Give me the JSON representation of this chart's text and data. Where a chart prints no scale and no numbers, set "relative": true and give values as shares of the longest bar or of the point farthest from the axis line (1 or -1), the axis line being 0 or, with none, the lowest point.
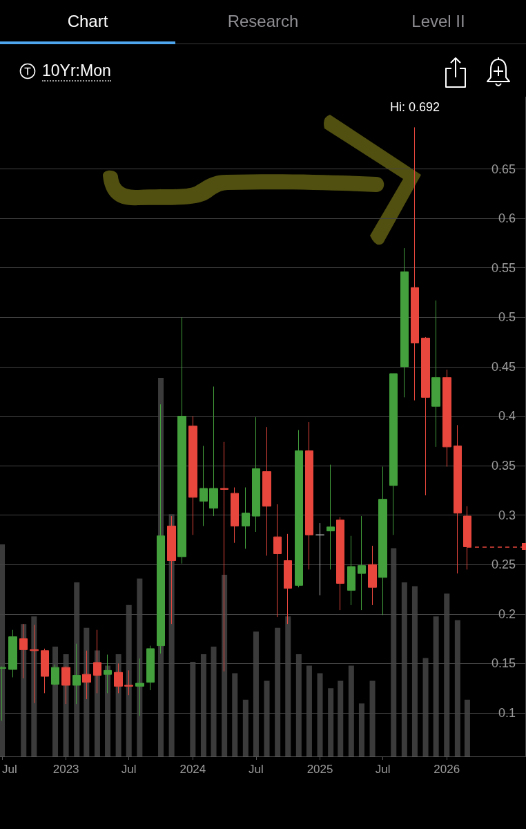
{
  "chart_data": [
    {
      "type": "candlestick",
      "title": "10Yr:Mon",
      "annotations": [
        "Chart",
        "Research",
        "Level II",
        {
          "text": "Hi: 0.692",
          "x": "2025-10",
          "y": 0.692
        }
      ],
      "x": [
        "2022-07",
        "2022-08",
        "2022-09",
        "2022-10",
        "2022-11",
        "2022-12",
        "2023-01",
        "2023-02",
        "2023-03",
        "2023-04",
        "2023-05",
        "2023-06",
        "2023-07",
        "2023-08",
        "2023-09",
        "2023-10",
        "2023-11",
        "2023-12",
        "2024-01",
        "2024-02",
        "2024-03",
        "2024-04",
        "2024-05",
        "2024-06",
        "2024-07",
        "2024-08",
        "2024-09",
        "2024-10",
        "2024-11",
        "2024-12",
        "2025-01",
        "2025-02",
        "2025-03",
        "2025-04",
        "2025-05",
        "2025-06",
        "2025-07",
        "2025-08",
        "2025-09",
        "2025-10",
        "2025-11",
        "2025-12",
        "2026-01",
        "2026-02",
        "2026-03"
      ],
      "ohlc": [
        [
          0.145,
          0.147,
          0.092,
          0.146
        ],
        [
          0.144,
          0.184,
          0.136,
          0.177
        ],
        [
          0.175,
          0.19,
          0.135,
          0.164
        ],
        [
          0.164,
          0.189,
          0.11,
          0.163
        ],
        [
          0.163,
          0.165,
          0.12,
          0.137
        ],
        [
          0.129,
          0.149,
          0.128,
          0.146
        ],
        [
          0.146,
          0.147,
          0.109,
          0.128
        ],
        [
          0.128,
          0.17,
          0.109,
          0.138
        ],
        [
          0.139,
          0.163,
          0.114,
          0.131
        ],
        [
          0.151,
          0.184,
          0.12,
          0.138
        ],
        [
          0.139,
          0.159,
          0.12,
          0.143
        ],
        [
          0.141,
          0.15,
          0.12,
          0.127
        ],
        [
          0.128,
          0.143,
          0.118,
          0.127
        ],
        [
          0.127,
          0.155,
          0.097,
          0.13
        ],
        [
          0.131,
          0.168,
          0.123,
          0.165
        ],
        [
          0.168,
          0.412,
          0.16,
          0.279
        ],
        [
          0.289,
          0.299,
          0.19,
          0.254
        ],
        [
          0.258,
          0.5,
          0.251,
          0.4
        ],
        [
          0.39,
          0.4,
          0.28,
          0.318
        ],
        [
          0.314,
          0.37,
          0.289,
          0.327
        ],
        [
          0.307,
          0.43,
          0.299,
          0.327
        ],
        [
          0.327,
          0.374,
          0.142,
          0.326
        ],
        [
          0.322,
          0.328,
          0.272,
          0.289
        ],
        [
          0.289,
          0.328,
          0.266,
          0.302
        ],
        [
          0.299,
          0.399,
          0.283,
          0.347
        ],
        [
          0.344,
          0.389,
          0.259,
          0.309
        ],
        [
          0.278,
          0.311,
          0.197,
          0.261
        ],
        [
          0.254,
          0.281,
          0.19,
          0.226
        ],
        [
          0.229,
          0.386,
          0.227,
          0.365
        ],
        [
          0.365,
          0.394,
          0.245,
          0.28
        ],
        [
          0.28,
          0.292,
          0.219,
          0.28
        ],
        [
          0.284,
          0.351,
          0.245,
          0.288
        ],
        [
          0.295,
          0.298,
          0.204,
          0.231
        ],
        [
          0.224,
          0.279,
          0.209,
          0.248
        ],
        [
          0.241,
          0.299,
          0.204,
          0.249
        ],
        [
          0.25,
          0.269,
          0.209,
          0.227
        ],
        [
          0.237,
          0.349,
          0.199,
          0.316
        ],
        [
          0.33,
          0.443,
          0.28,
          0.443
        ],
        [
          0.45,
          0.57,
          0.419,
          0.546
        ],
        [
          0.53,
          0.692,
          0.416,
          0.474
        ],
        [
          0.479,
          0.48,
          0.32,
          0.419
        ],
        [
          0.41,
          0.517,
          0.369,
          0.439
        ],
        [
          0.439,
          0.447,
          0.349,
          0.369
        ],
        [
          0.37,
          0.391,
          0.241,
          0.302
        ],
        [
          0.299,
          0.309,
          0.245,
          0.268
        ]
      ],
      "colors": [
        "#43a03c",
        "#43a03c",
        "#e8473d",
        "#e8473d",
        "#e8473d",
        "#43a03c",
        "#e8473d",
        "#43a03c",
        "#e8473d",
        "#e8473d",
        "#43a03c",
        "#e8473d",
        "#e8473d",
        "#43a03c",
        "#43a03c",
        "#43a03c",
        "#e8473d",
        "#43a03c",
        "#e8473d",
        "#43a03c",
        "#43a03c",
        "#e8473d",
        "#e8473d",
        "#43a03c",
        "#43a03c",
        "#e8473d",
        "#e8473d",
        "#e8473d",
        "#43a03c",
        "#e8473d",
        "#bdbdbd",
        "#43a03c",
        "#e8473d",
        "#43a03c",
        "#43a03c",
        "#e8473d",
        "#43a03c",
        "#43a03c",
        "#43a03c",
        "#e8473d",
        "#e8473d",
        "#43a03c",
        "#e8473d",
        "#e8473d",
        "#e8473d"
      ],
      "xlim": [
        "2022-06-25",
        "2026-08-15"
      ],
      "xticks": [
        {
          "value": "2022-07",
          "label": "Jul"
        },
        {
          "value": "2023-01",
          "label": "2023"
        },
        {
          "value": "2023-07",
          "label": "Jul"
        },
        {
          "value": "2024-01",
          "label": "2024"
        },
        {
          "value": "2024-07",
          "label": "Jul"
        },
        {
          "value": "2025-01",
          "label": "2025"
        },
        {
          "value": "2025-07",
          "label": "Jul"
        },
        {
          "value": "2026-01",
          "label": "2026"
        }
      ],
      "ylim": [
        0.056,
        0.723
      ],
      "yticks": [
        0.1,
        0.15,
        0.2,
        0.25,
        0.3,
        0.35,
        0.4,
        0.45,
        0.5,
        0.55,
        0.6,
        0.65
      ],
      "ref_lines": [
        {
          "axis": "y",
          "value": 0.268,
          "color": "#e8473d",
          "line_style": "dashed"
        }
      ],
      "grid": "y"
    },
    {
      "type": "bar",
      "relative": true,
      "x": [
        "2022-07",
        "2022-08",
        "2022-09",
        "2022-10",
        "2022-11",
        "2022-12",
        "2023-01",
        "2023-02",
        "2023-03",
        "2023-04",
        "2023-05",
        "2023-06",
        "2023-07",
        "2023-08",
        "2023-09",
        "2023-10",
        "2023-11",
        "2023-12",
        "2024-01",
        "2024-02",
        "2024-03",
        "2024-04",
        "2024-05",
        "2024-06",
        "2024-07",
        "2024-08",
        "2024-09",
        "2024-10",
        "2024-11",
        "2024-12",
        "2025-01",
        "2025-02",
        "2025-03",
        "2025-04",
        "2025-05",
        "2025-06",
        "2025-07",
        "2025-08",
        "2025-09",
        "2025-10",
        "2025-11",
        "2025-12",
        "2026-01",
        "2026-02",
        "2026-03"
      ],
      "xlim": [
        "2022-06-25",
        "2026-08-15"
      ],
      "color": "#3b3b3b",
      "values": [
        0.56,
        null,
        0.35,
        0.37,
        null,
        0.29,
        0.27,
        0.46,
        0.34,
        0.28,
        0.24,
        0.27,
        0.4,
        0.47,
        null,
        1,
        0.64,
        null,
        0.25,
        0.27,
        0.29,
        0.48,
        0.22,
        0.15,
        0.33,
        0.2,
        0.34,
        0.37,
        0.27,
        0.24,
        0.22,
        0.18,
        0.2,
        0.24,
        0.14,
        0.2,
        null,
        0.55,
        0.46,
        0.45,
        0.26,
        0.37,
        0.43,
        0.36,
        0.15
      ]
    }
  ]
}
